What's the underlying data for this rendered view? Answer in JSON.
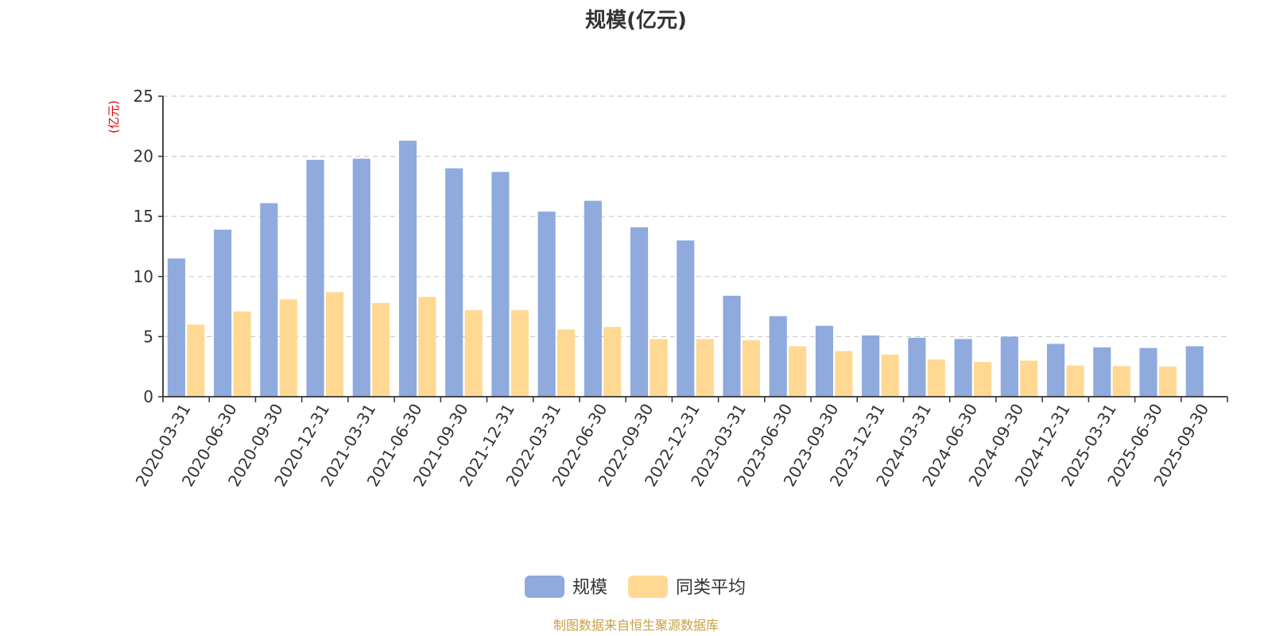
{
  "chart_data": {
    "type": "bar",
    "title": "规模(亿元)",
    "ylabel": "(亿元)",
    "ylim": [
      0,
      25
    ],
    "yticks": [
      "0",
      "5",
      "10",
      "15",
      "20",
      "25"
    ],
    "grid": true,
    "legend_position": "bottom-center",
    "categories": [
      "2020-03-31",
      "2020-06-30",
      "2020-09-30",
      "2020-12-31",
      "2021-03-31",
      "2021-06-30",
      "2021-09-30",
      "2021-12-31",
      "2022-03-31",
      "2022-06-30",
      "2022-09-30",
      "2022-12-31",
      "2023-03-31",
      "2023-06-30",
      "2023-09-30",
      "2023-12-31",
      "2024-03-31",
      "2024-06-30",
      "2024-09-30",
      "2024-12-31",
      "2025-03-31",
      "2025-06-30",
      "2025-09-30"
    ],
    "series": [
      {
        "name": "规模",
        "color": "#8faadc",
        "values": [
          11.5,
          13.9,
          16.1,
          19.7,
          19.8,
          21.3,
          19.0,
          18.7,
          15.4,
          16.3,
          14.1,
          13.0,
          8.4,
          6.7,
          5.9,
          5.1,
          4.9,
          4.8,
          5.0,
          4.4,
          4.1,
          4.05,
          4.2
        ]
      },
      {
        "name": "同类平均",
        "color": "#ffd993",
        "values": [
          6.0,
          7.1,
          8.1,
          8.7,
          7.8,
          8.3,
          7.2,
          7.2,
          5.6,
          5.8,
          4.8,
          4.8,
          4.7,
          4.2,
          3.8,
          3.5,
          3.1,
          2.9,
          3.0,
          2.6,
          2.55,
          2.5,
          null
        ]
      }
    ]
  },
  "colors": {
    "axis": "#333333",
    "grid": "#cccccc",
    "unit": "#e60000",
    "source": "#c8a046"
  },
  "source_note": "制图数据来自恒生聚源数据库"
}
